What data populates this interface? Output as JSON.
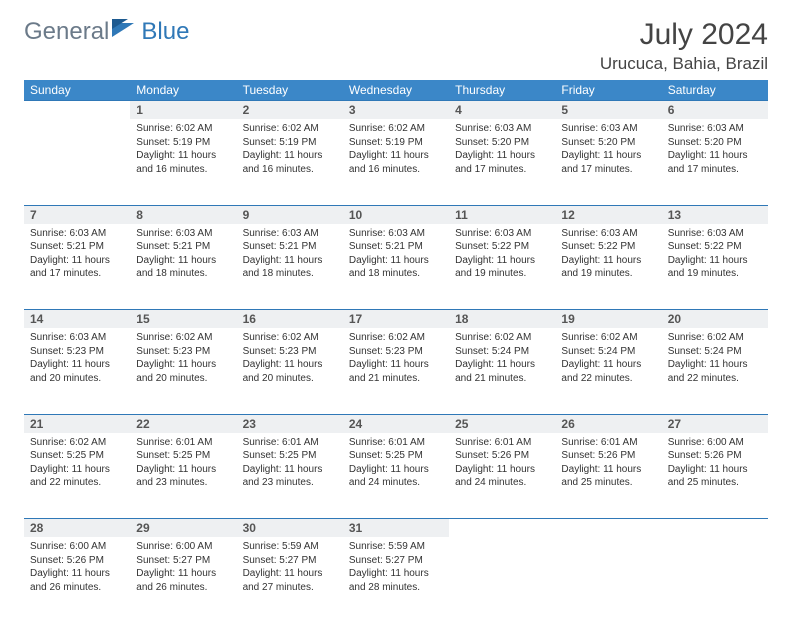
{
  "logo": {
    "text1": "General",
    "text2": "Blue"
  },
  "title": "July 2024",
  "location": "Urucuca, Bahia, Brazil",
  "colors": {
    "header_bg": "#3b87c8",
    "header_text": "#ffffff",
    "daynum_bg": "#eef0f2",
    "rule": "#2f78b7",
    "logo_gray": "#6b7a89",
    "logo_blue": "#2f78b7"
  },
  "day_headers": [
    "Sunday",
    "Monday",
    "Tuesday",
    "Wednesday",
    "Thursday",
    "Friday",
    "Saturday"
  ],
  "weeks": [
    {
      "nums": [
        "",
        "1",
        "2",
        "3",
        "4",
        "5",
        "6"
      ],
      "cells": [
        null,
        {
          "sunrise": "6:02 AM",
          "sunset": "5:19 PM",
          "daylight": "11 hours and 16 minutes."
        },
        {
          "sunrise": "6:02 AM",
          "sunset": "5:19 PM",
          "daylight": "11 hours and 16 minutes."
        },
        {
          "sunrise": "6:02 AM",
          "sunset": "5:19 PM",
          "daylight": "11 hours and 16 minutes."
        },
        {
          "sunrise": "6:03 AM",
          "sunset": "5:20 PM",
          "daylight": "11 hours and 17 minutes."
        },
        {
          "sunrise": "6:03 AM",
          "sunset": "5:20 PM",
          "daylight": "11 hours and 17 minutes."
        },
        {
          "sunrise": "6:03 AM",
          "sunset": "5:20 PM",
          "daylight": "11 hours and 17 minutes."
        }
      ]
    },
    {
      "nums": [
        "7",
        "8",
        "9",
        "10",
        "11",
        "12",
        "13"
      ],
      "cells": [
        {
          "sunrise": "6:03 AM",
          "sunset": "5:21 PM",
          "daylight": "11 hours and 17 minutes."
        },
        {
          "sunrise": "6:03 AM",
          "sunset": "5:21 PM",
          "daylight": "11 hours and 18 minutes."
        },
        {
          "sunrise": "6:03 AM",
          "sunset": "5:21 PM",
          "daylight": "11 hours and 18 minutes."
        },
        {
          "sunrise": "6:03 AM",
          "sunset": "5:21 PM",
          "daylight": "11 hours and 18 minutes."
        },
        {
          "sunrise": "6:03 AM",
          "sunset": "5:22 PM",
          "daylight": "11 hours and 19 minutes."
        },
        {
          "sunrise": "6:03 AM",
          "sunset": "5:22 PM",
          "daylight": "11 hours and 19 minutes."
        },
        {
          "sunrise": "6:03 AM",
          "sunset": "5:22 PM",
          "daylight": "11 hours and 19 minutes."
        }
      ]
    },
    {
      "nums": [
        "14",
        "15",
        "16",
        "17",
        "18",
        "19",
        "20"
      ],
      "cells": [
        {
          "sunrise": "6:03 AM",
          "sunset": "5:23 PM",
          "daylight": "11 hours and 20 minutes."
        },
        {
          "sunrise": "6:02 AM",
          "sunset": "5:23 PM",
          "daylight": "11 hours and 20 minutes."
        },
        {
          "sunrise": "6:02 AM",
          "sunset": "5:23 PM",
          "daylight": "11 hours and 20 minutes."
        },
        {
          "sunrise": "6:02 AM",
          "sunset": "5:23 PM",
          "daylight": "11 hours and 21 minutes."
        },
        {
          "sunrise": "6:02 AM",
          "sunset": "5:24 PM",
          "daylight": "11 hours and 21 minutes."
        },
        {
          "sunrise": "6:02 AM",
          "sunset": "5:24 PM",
          "daylight": "11 hours and 22 minutes."
        },
        {
          "sunrise": "6:02 AM",
          "sunset": "5:24 PM",
          "daylight": "11 hours and 22 minutes."
        }
      ]
    },
    {
      "nums": [
        "21",
        "22",
        "23",
        "24",
        "25",
        "26",
        "27"
      ],
      "cells": [
        {
          "sunrise": "6:02 AM",
          "sunset": "5:25 PM",
          "daylight": "11 hours and 22 minutes."
        },
        {
          "sunrise": "6:01 AM",
          "sunset": "5:25 PM",
          "daylight": "11 hours and 23 minutes."
        },
        {
          "sunrise": "6:01 AM",
          "sunset": "5:25 PM",
          "daylight": "11 hours and 23 minutes."
        },
        {
          "sunrise": "6:01 AM",
          "sunset": "5:25 PM",
          "daylight": "11 hours and 24 minutes."
        },
        {
          "sunrise": "6:01 AM",
          "sunset": "5:26 PM",
          "daylight": "11 hours and 24 minutes."
        },
        {
          "sunrise": "6:01 AM",
          "sunset": "5:26 PM",
          "daylight": "11 hours and 25 minutes."
        },
        {
          "sunrise": "6:00 AM",
          "sunset": "5:26 PM",
          "daylight": "11 hours and 25 minutes."
        }
      ]
    },
    {
      "nums": [
        "28",
        "29",
        "30",
        "31",
        "",
        "",
        ""
      ],
      "cells": [
        {
          "sunrise": "6:00 AM",
          "sunset": "5:26 PM",
          "daylight": "11 hours and 26 minutes."
        },
        {
          "sunrise": "6:00 AM",
          "sunset": "5:27 PM",
          "daylight": "11 hours and 26 minutes."
        },
        {
          "sunrise": "5:59 AM",
          "sunset": "5:27 PM",
          "daylight": "11 hours and 27 minutes."
        },
        {
          "sunrise": "5:59 AM",
          "sunset": "5:27 PM",
          "daylight": "11 hours and 28 minutes."
        },
        null,
        null,
        null
      ]
    }
  ],
  "labels": {
    "sunrise": "Sunrise:",
    "sunset": "Sunset:",
    "daylight": "Daylight:"
  }
}
